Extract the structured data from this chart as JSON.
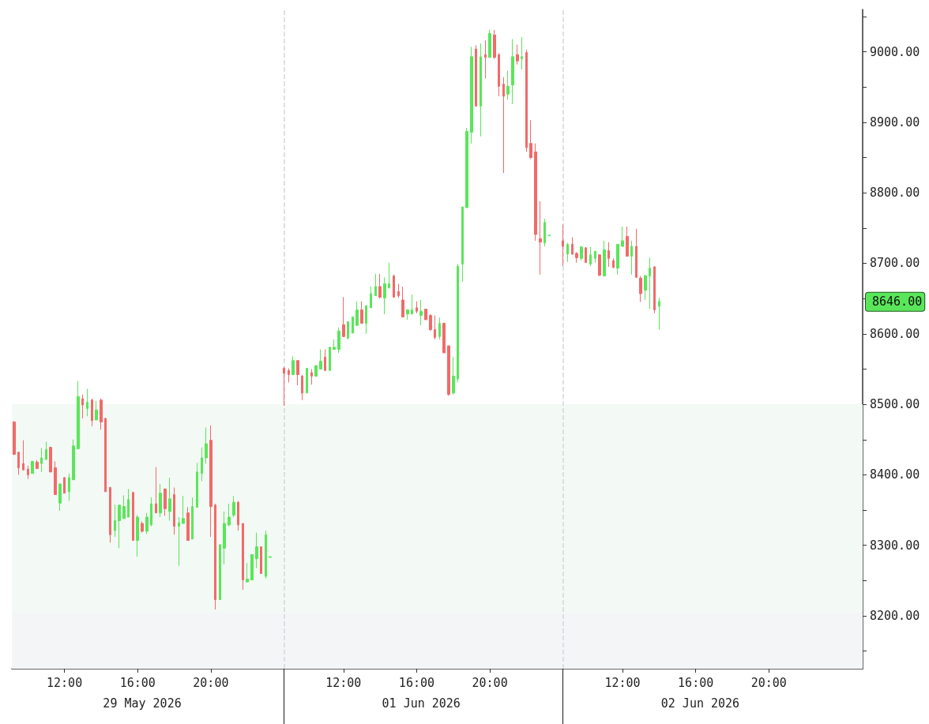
{
  "chart_data": {
    "type": "candlestick",
    "categories": [
      null,
      null,
      null,
      null,
      null,
      null,
      null,
      null,
      null,
      null,
      null,
      "12:00",
      null,
      null,
      null,
      null,
      null,
      null,
      null,
      null,
      null,
      null,
      null,
      null,
      null,
      null,
      null,
      "16:00",
      null,
      null,
      null,
      null,
      null,
      null,
      null,
      null,
      null,
      null,
      null,
      null,
      null,
      null,
      null,
      "20:00",
      null,
      null,
      null,
      null,
      null,
      null,
      null,
      null,
      null,
      null,
      null,
      null,
      null,
      null,
      null,
      null,
      null,
      null,
      null,
      null,
      null,
      null,
      null,
      null,
      null,
      null,
      null,
      null,
      "12:00",
      null,
      null,
      null,
      null,
      null,
      null,
      null,
      null,
      null,
      null,
      null,
      null,
      null,
      null,
      null,
      "16:00",
      null,
      null,
      null,
      null,
      null,
      null,
      null,
      null,
      null,
      null,
      null,
      null,
      null,
      null,
      null,
      "20:00",
      null,
      null,
      null,
      null,
      null,
      null,
      null,
      null,
      null,
      null,
      null,
      null,
      null,
      null,
      null,
      null,
      null,
      null,
      null,
      null,
      null,
      null,
      null,
      null,
      null,
      null,
      null,
      null,
      "12:00",
      null,
      null,
      null,
      null,
      null,
      null,
      null,
      null,
      null,
      null,
      null,
      null,
      null,
      null,
      null,
      "16:00",
      null,
      null,
      null,
      null,
      null,
      null,
      null,
      null,
      null,
      null,
      null,
      null,
      null,
      null,
      null,
      "20:00",
      null,
      null,
      null,
      null,
      null,
      null,
      null,
      null,
      null,
      null,
      null,
      null,
      null,
      null,
      null,
      null,
      null,
      null,
      null,
      null
    ],
    "ohlc": [
      [
        8475,
        8476,
        8428,
        8429
      ],
      [
        8432,
        8433,
        8400,
        8410
      ],
      [
        8416,
        8449,
        8407,
        8407
      ],
      [
        8408,
        8413,
        8394,
        8400
      ],
      [
        8402,
        8420,
        8402,
        8419
      ],
      [
        8418,
        8421,
        8408,
        8409
      ],
      [
        8416,
        8438,
        8404,
        8424
      ],
      [
        8422,
        8447,
        8421,
        8436
      ],
      [
        8439,
        8440,
        8404,
        8404
      ],
      [
        8410,
        8419,
        8372,
        8372
      ],
      [
        8360,
        8388,
        8349,
        8387
      ],
      [
        8396,
        8397,
        8374,
        8374
      ],
      [
        8376,
        8402,
        8363,
        8396
      ],
      [
        8393,
        8450,
        8393,
        8441
      ],
      [
        8437,
        8533,
        8437,
        8511
      ],
      [
        8508,
        8514,
        8480,
        8499
      ],
      [
        8494,
        8522,
        8483,
        8503
      ],
      [
        8506,
        8508,
        8469,
        8477
      ],
      [
        8478,
        8505,
        8477,
        8492
      ],
      [
        8506,
        8508,
        8464,
        8475
      ],
      [
        8480,
        8481,
        8376,
        8376
      ],
      [
        8382,
        8383,
        8304,
        8315
      ],
      [
        8321,
        8358,
        8312,
        8335
      ],
      [
        8335,
        8357,
        8296,
        8357
      ],
      [
        8338,
        8371,
        8338,
        8355
      ],
      [
        8340,
        8380,
        8340,
        8365
      ],
      [
        8375,
        8376,
        8307,
        8307
      ],
      [
        8307,
        8343,
        8284,
        8340
      ],
      [
        8331,
        8334,
        8318,
        8320
      ],
      [
        8320,
        8346,
        8316,
        8340
      ],
      [
        8329,
        8368,
        8327,
        8359
      ],
      [
        8359,
        8411,
        8346,
        8346
      ],
      [
        8346,
        8387,
        8340,
        8374
      ],
      [
        8380,
        8380,
        8342,
        8352
      ],
      [
        8348,
        8396,
        8335,
        8366
      ],
      [
        8372,
        8382,
        8315,
        8327
      ],
      [
        8327,
        8340,
        8271,
        8332
      ],
      [
        8331,
        8370,
        8331,
        8338
      ],
      [
        8346,
        8354,
        8307,
        8307
      ],
      [
        8309,
        8368,
        8309,
        8355
      ],
      [
        8354,
        8417,
        8354,
        8404
      ],
      [
        8402,
        8439,
        8391,
        8424
      ],
      [
        8424,
        8467,
        8416,
        8444
      ],
      [
        8449,
        8470,
        8312,
        8355
      ],
      [
        8357,
        8359,
        8209,
        8223
      ],
      [
        8223,
        8301,
        8223,
        8301
      ],
      [
        8296,
        8348,
        8273,
        8331
      ],
      [
        8329,
        8359,
        8327,
        8340
      ],
      [
        8343,
        8370,
        8340,
        8361
      ],
      [
        8361,
        8363,
        8321,
        8329
      ],
      [
        8331,
        8331,
        8237,
        8251
      ],
      [
        8248,
        8275,
        8248,
        8252
      ],
      [
        8251,
        8287,
        8251,
        8287
      ],
      [
        8281,
        8318,
        8268,
        8298
      ],
      [
        8298,
        8298,
        8260,
        8260
      ],
      [
        8256,
        8321,
        8253,
        8315
      ],
      [
        8283,
        8284,
        8283,
        8284
      ],
      null,
      null,
      [
        8551,
        8553,
        8498,
        8544
      ],
      [
        8548,
        8551,
        8531,
        8542
      ],
      [
        8542,
        8568,
        8542,
        8562
      ],
      [
        8562,
        8563,
        8527,
        8542
      ],
      [
        8540,
        8542,
        8506,
        8516
      ],
      [
        8516,
        8551,
        8516,
        8551
      ],
      [
        8545,
        8550,
        8528,
        8540
      ],
      [
        8540,
        8555,
        8540,
        8555
      ],
      [
        8550,
        8578,
        8550,
        8561
      ],
      [
        8567,
        8578,
        8548,
        8548
      ],
      [
        8548,
        8581,
        8548,
        8581
      ],
      [
        8578,
        8592,
        8578,
        8581
      ],
      [
        8578,
        8609,
        8573,
        8604
      ],
      [
        8613,
        8652,
        8596,
        8596
      ],
      [
        8594,
        8617,
        8592,
        8617
      ],
      [
        8601,
        8624,
        8601,
        8624
      ],
      [
        8612,
        8646,
        8611,
        8634
      ],
      [
        8634,
        8646,
        8615,
        8615
      ],
      [
        8615,
        8640,
        8600,
        8640
      ],
      [
        8637,
        8667,
        8637,
        8657
      ],
      [
        8654,
        8685,
        8654,
        8667
      ],
      [
        8667,
        8685,
        8650,
        8652
      ],
      [
        8651,
        8680,
        8628,
        8671
      ],
      [
        8665,
        8701,
        8665,
        8671
      ],
      [
        8682,
        8684,
        8652,
        8652
      ],
      [
        8660,
        8671,
        8651,
        8654
      ],
      [
        8648,
        8667,
        8623,
        8624
      ],
      [
        8628,
        8635,
        8620,
        8634
      ],
      [
        8628,
        8656,
        8628,
        8634
      ],
      [
        8637,
        8646,
        8629,
        8632
      ],
      [
        8626,
        8648,
        8612,
        8632
      ],
      [
        8635,
        8635,
        8620,
        8620
      ],
      [
        8626,
        8628,
        8604,
        8606
      ],
      [
        8606,
        8626,
        8592,
        8595
      ],
      [
        8596,
        8623,
        8592,
        8615
      ],
      [
        8615,
        8615,
        8573,
        8573
      ],
      [
        8583,
        8583,
        8512,
        8514
      ],
      [
        8516,
        8567,
        8514,
        8540
      ],
      [
        8536,
        8699,
        8531,
        8696
      ],
      [
        8699,
        8780,
        8674,
        8780
      ],
      [
        8779,
        8892,
        8779,
        8887
      ],
      [
        8886,
        9007,
        8870,
        8993
      ],
      [
        9004,
        9009,
        8923,
        8923
      ],
      [
        8923,
        9012,
        8880,
        8993
      ],
      [
        8996,
        9016,
        8962,
        8992
      ],
      [
        8992,
        9031,
        8992,
        9026
      ],
      [
        9024,
        9031,
        8990,
        8992
      ],
      [
        8996,
        8998,
        8937,
        8951
      ],
      [
        8954,
        8964,
        8828,
        8937
      ],
      [
        8940,
        8973,
        8932,
        8951
      ],
      [
        8953,
        9018,
        8926,
        8993
      ],
      [
        8996,
        9010,
        8982,
        8987
      ],
      [
        8990,
        9021,
        8975,
        8993
      ],
      [
        8999,
        9003,
        8858,
        8864
      ],
      [
        8870,
        8903,
        8848,
        8850
      ],
      [
        8858,
        8870,
        8732,
        8741
      ],
      [
        8735,
        8788,
        8684,
        8730
      ],
      [
        8729,
        8763,
        8724,
        8758
      ],
      [
        8739,
        8740,
        8739,
        8740
      ],
      null,
      null,
      [
        8732,
        8755,
        8696,
        8724
      ],
      [
        8713,
        8729,
        8702,
        8727
      ],
      [
        8727,
        8737,
        8712,
        8713
      ],
      [
        8714,
        8716,
        8701,
        8708
      ],
      [
        8707,
        8725,
        8704,
        8723
      ],
      [
        8722,
        8723,
        8701,
        8701
      ],
      [
        8699,
        8723,
        8696,
        8712
      ],
      [
        8707,
        8718,
        8701,
        8717
      ],
      [
        8712,
        8713,
        8682,
        8683
      ],
      [
        8682,
        8732,
        8682,
        8719
      ],
      [
        8718,
        8730,
        8695,
        8707
      ],
      [
        8704,
        8707,
        8693,
        8694
      ],
      [
        8693,
        8727,
        8684,
        8727
      ],
      [
        8724,
        8752,
        8724,
        8732
      ],
      [
        8738,
        8752,
        8710,
        8710
      ],
      [
        8710,
        8732,
        8684,
        8724
      ],
      [
        8724,
        8749,
        8680,
        8680
      ],
      [
        8679,
        8682,
        8645,
        8657
      ],
      [
        8662,
        8684,
        8648,
        8682
      ],
      [
        8682,
        8708,
        8635,
        8693
      ],
      [
        8695,
        8696,
        8629,
        8634
      ],
      [
        8639,
        8651,
        8606,
        8646
      ],
      null,
      null,
      null,
      null,
      null,
      null,
      null,
      null,
      null,
      null,
      null,
      null,
      null,
      null,
      null,
      null,
      null,
      null,
      null,
      null,
      null,
      null,
      null,
      null,
      null,
      null,
      null,
      null,
      null,
      null,
      null,
      null,
      null,
      null,
      null,
      null,
      null,
      null,
      null,
      null,
      null,
      null,
      null,
      null
    ],
    "colors": [
      "#f26a6a",
      "#f26a6a",
      "#f26a6a",
      "#f26a6a",
      "#5ae65a",
      "#f26a6a",
      "#5ae65a",
      "#5ae65a",
      "#f26a6a",
      "#f26a6a",
      "#5ae65a",
      "#f26a6a",
      "#5ae65a",
      "#5ae65a",
      "#5ae65a",
      "#f26a6a",
      "#5ae65a",
      "#f26a6a",
      "#5ae65a",
      "#f26a6a",
      "#f26a6a",
      "#f26a6a",
      "#5ae65a",
      "#5ae65a",
      "#5ae65a",
      "#5ae65a",
      "#f26a6a",
      "#5ae65a",
      "#f26a6a",
      "#5ae65a",
      "#5ae65a",
      "#f26a6a",
      "#5ae65a",
      "#f26a6a",
      "#5ae65a",
      "#f26a6a",
      "#5ae65a",
      "#5ae65a",
      "#f26a6a",
      "#5ae65a",
      "#5ae65a",
      "#5ae65a",
      "#5ae65a",
      "#f26a6a",
      "#f26a6a",
      "#5ae65a",
      "#5ae65a",
      "#5ae65a",
      "#5ae65a",
      "#f26a6a",
      "#f26a6a",
      "#5ae65a",
      "#5ae65a",
      "#5ae65a",
      "#f26a6a",
      "#5ae65a",
      "#5ae65a",
      null,
      null,
      "#f26a6a",
      "#f26a6a",
      "#5ae65a",
      "#f26a6a",
      "#f26a6a",
      "#5ae65a",
      "#f26a6a",
      "#5ae65a",
      "#5ae65a",
      "#f26a6a",
      "#5ae65a",
      "#5ae65a",
      "#5ae65a",
      "#f26a6a",
      "#5ae65a",
      "#5ae65a",
      "#5ae65a",
      "#f26a6a",
      "#5ae65a",
      "#5ae65a",
      "#5ae65a",
      "#f26a6a",
      "#5ae65a",
      "#5ae65a",
      "#f26a6a",
      "#f26a6a",
      "#f26a6a",
      "#5ae65a",
      "#5ae65a",
      "#f26a6a",
      "#5ae65a",
      "#f26a6a",
      "#f26a6a",
      "#f26a6a",
      "#5ae65a",
      "#f26a6a",
      "#f26a6a",
      "#5ae65a",
      "#5ae65a",
      "#5ae65a",
      "#5ae65a",
      "#5ae65a",
      "#f26a6a",
      "#5ae65a",
      "#f26a6a",
      "#5ae65a",
      "#f26a6a",
      "#f26a6a",
      "#f26a6a",
      "#5ae65a",
      "#5ae65a",
      "#f26a6a",
      "#5ae65a",
      "#f26a6a",
      "#f26a6a",
      "#f26a6a",
      "#f26a6a",
      "#5ae65a",
      "#5ae65a",
      null,
      null,
      "#f26a6a",
      "#5ae65a",
      "#f26a6a",
      "#f26a6a",
      "#5ae65a",
      "#f26a6a",
      "#5ae65a",
      "#5ae65a",
      "#f26a6a",
      "#5ae65a",
      "#f26a6a",
      "#f26a6a",
      "#5ae65a",
      "#5ae65a",
      "#f26a6a",
      "#5ae65a",
      "#f26a6a",
      "#f26a6a",
      "#5ae65a",
      "#5ae65a",
      "#f26a6a",
      "#5ae65a",
      null,
      null,
      null,
      null,
      null,
      null,
      null,
      null,
      null,
      null,
      null,
      null,
      null,
      null,
      null,
      null,
      null,
      null,
      null,
      null,
      null,
      null,
      null,
      null,
      null,
      null,
      null,
      null,
      null,
      null,
      null,
      null,
      null,
      null,
      null,
      null,
      null,
      null,
      null,
      null,
      null,
      null,
      null,
      null
    ],
    "ylim": [
      8125,
      9060
    ],
    "yticks": [
      {
        "value": 8150,
        "label": null
      },
      {
        "value": 8200,
        "label": "8200.00"
      },
      {
        "value": 8250,
        "label": null
      },
      {
        "value": 8300,
        "label": "8300.00"
      },
      {
        "value": 8350,
        "label": null
      },
      {
        "value": 8400,
        "label": "8400.00"
      },
      {
        "value": 8450,
        "label": null
      },
      {
        "value": 8500,
        "label": "8500.00"
      },
      {
        "value": 8550,
        "label": null
      },
      {
        "value": 8600,
        "label": "8600.00"
      },
      {
        "value": 8650,
        "label": null
      },
      {
        "value": 8700,
        "label": "8700.00"
      },
      {
        "value": 8750,
        "label": null
      },
      {
        "value": 8800,
        "label": "8800.00"
      },
      {
        "value": 8850,
        "label": null
      },
      {
        "value": 8900,
        "label": "8900.00"
      },
      {
        "value": 8950,
        "label": null
      },
      {
        "value": 9000,
        "label": "9000.00"
      },
      {
        "value": 9050,
        "label": null
      }
    ],
    "bands": [
      {
        "axis": "y",
        "from": 8205,
        "to": 8500,
        "color": "#f3f9f4"
      },
      {
        "axis": "y",
        "from": 8125,
        "to": 8205,
        "color": "#f4f5f6"
      }
    ],
    "annotations": [
      "29 May 2026",
      "01 Jun 2026",
      "02 Jun 2026",
      "8646.00"
    ],
    "grid": false
  }
}
